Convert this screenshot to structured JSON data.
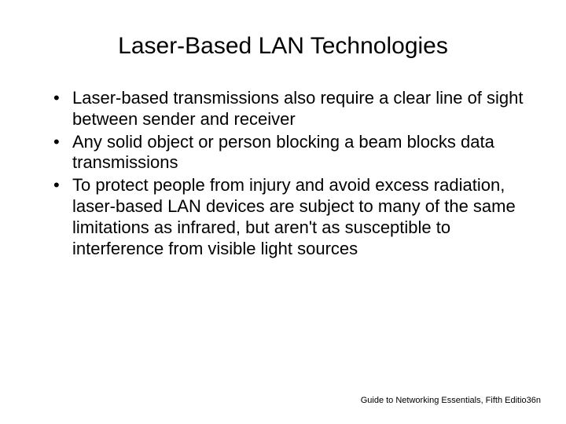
{
  "title": "Laser-Based LAN Technologies",
  "bullets": [
    "Laser-based transmissions also require a clear line of sight between sender and receiver",
    "Any solid object or person blocking a beam blocks data transmissions",
    "To protect people from injury and avoid excess radiation, laser-based LAN devices are subject to many of the same limitations as infrared, but aren't as susceptible to interference from visible light sources"
  ],
  "footer": "Guide to Networking Essentials, Fifth Editio36n",
  "styling": {
    "slide_width": 720,
    "slide_height": 540,
    "background_color": "#ffffff",
    "text_color": "#000000",
    "title_fontsize": 30,
    "bullet_fontsize": 22,
    "footer_fontsize": 11,
    "font_family": "Arial"
  }
}
